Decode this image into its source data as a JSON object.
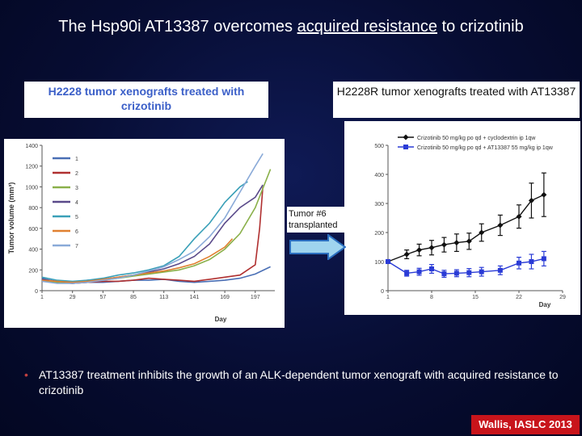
{
  "slide": {
    "title_part1": "The Hsp90i AT13387 overcomes ",
    "title_underlined": "acquired resistance",
    "title_part2": " to crizotinib",
    "left_panel_label": "H2228 tumor xenografts treated with crizotinib",
    "right_panel_label": "H2228R tumor xenografts treated with AT13387",
    "transplant_label": "Tumor #6 transplanted",
    "bullet_text": "AT13387 treatment inhibits the growth of an ALK-dependent tumor xenograft with acquired resistance to crizotinib",
    "credit": "Wallis, IASLC 2013"
  },
  "colors": {
    "background": "#070d33",
    "label_blue": "#3b5fc8",
    "credit_red": "#c8141b",
    "arrow_fill": "#9fd4ee",
    "arrow_stroke": "#2b6fc0"
  },
  "chart_data": [
    {
      "type": "line",
      "xlabel": "Day",
      "ylabel": "Tumor volume (mm³)",
      "xlim": [
        1,
        215
      ],
      "ylim": [
        0,
        1400
      ],
      "xticks": [
        1,
        29,
        57,
        85,
        113,
        141,
        169,
        197
      ],
      "yticks": [
        0,
        200,
        400,
        600,
        800,
        1000,
        1200,
        1400
      ],
      "legend": "left",
      "series": [
        {
          "name": "1",
          "color": "#4a6fb5",
          "x": [
            1,
            15,
            29,
            43,
            57,
            71,
            85,
            99,
            113,
            127,
            141,
            155,
            169,
            183,
            197,
            211
          ],
          "y": [
            120,
            80,
            70,
            80,
            80,
            90,
            100,
            100,
            110,
            90,
            80,
            90,
            100,
            120,
            160,
            230
          ]
        },
        {
          "name": "2",
          "color": "#b03030",
          "x": [
            1,
            15,
            29,
            43,
            57,
            71,
            85,
            99,
            113,
            127,
            141,
            155,
            169,
            183,
            197,
            201,
            204
          ],
          "y": [
            90,
            80,
            70,
            80,
            90,
            90,
            100,
            120,
            110,
            100,
            90,
            110,
            130,
            150,
            250,
            600,
            1000
          ]
        },
        {
          "name": "3",
          "color": "#8ab04a",
          "x": [
            1,
            15,
            29,
            43,
            57,
            71,
            85,
            99,
            113,
            127,
            141,
            155,
            169,
            183,
            197,
            211
          ],
          "y": [
            100,
            80,
            80,
            90,
            100,
            120,
            140,
            160,
            180,
            200,
            240,
            300,
            400,
            550,
            800,
            1170
          ]
        },
        {
          "name": "4",
          "color": "#5a4a8a",
          "x": [
            1,
            15,
            29,
            43,
            57,
            71,
            85,
            99,
            113,
            127,
            141,
            155,
            169,
            183,
            197,
            204
          ],
          "y": [
            110,
            90,
            80,
            100,
            110,
            130,
            150,
            180,
            210,
            260,
            330,
            450,
            650,
            800,
            900,
            1020
          ]
        },
        {
          "name": "5",
          "color": "#3aa0b8",
          "x": [
            1,
            15,
            29,
            43,
            57,
            71,
            85,
            99,
            113,
            127,
            141,
            155,
            169,
            183,
            190
          ],
          "y": [
            130,
            100,
            90,
            100,
            120,
            150,
            170,
            200,
            240,
            330,
            500,
            650,
            850,
            1000,
            1050
          ]
        },
        {
          "name": "6",
          "color": "#e08030",
          "x": [
            1,
            15,
            29,
            43,
            57,
            71,
            85,
            99,
            113,
            127,
            141,
            155,
            169,
            176
          ],
          "y": [
            100,
            90,
            80,
            90,
            110,
            130,
            150,
            170,
            190,
            220,
            260,
            330,
            420,
            500
          ]
        },
        {
          "name": "7",
          "color": "#8aaad8",
          "x": [
            1,
            15,
            29,
            43,
            57,
            71,
            85,
            99,
            113,
            127,
            141,
            155,
            169,
            183,
            197,
            204
          ],
          "y": [
            90,
            70,
            70,
            80,
            100,
            120,
            150,
            190,
            230,
            300,
            380,
            520,
            700,
            950,
            1200,
            1320
          ]
        }
      ]
    },
    {
      "type": "line",
      "xlabel": "Day",
      "ylabel": "",
      "xlim": [
        1,
        29
      ],
      "ylim": [
        0,
        500
      ],
      "xticks": [
        1,
        8,
        15,
        22,
        29
      ],
      "yticks": [
        0,
        100,
        200,
        300,
        400,
        500
      ],
      "legend": "top",
      "series": [
        {
          "name": "Crizotinib 50 mg/kg po qd + cyclodextrin ip 1qw",
          "color": "#111111",
          "marker": "diamond",
          "x": [
            1,
            4,
            6,
            8,
            10,
            12,
            14,
            16,
            19,
            22,
            24,
            26
          ],
          "y": [
            100,
            125,
            140,
            148,
            158,
            165,
            170,
            200,
            225,
            255,
            310,
            330
          ],
          "err": [
            5,
            15,
            20,
            25,
            25,
            30,
            28,
            30,
            35,
            40,
            60,
            75
          ]
        },
        {
          "name": "Crizotinib 50 mg/kg po qd + AT13387 55 mg/kg ip 1qw",
          "color": "#2a3bd6",
          "marker": "square",
          "x": [
            1,
            4,
            6,
            8,
            10,
            12,
            14,
            16,
            19,
            22,
            24,
            26
          ],
          "y": [
            100,
            60,
            65,
            75,
            58,
            60,
            62,
            65,
            70,
            95,
            100,
            110
          ],
          "err": [
            5,
            10,
            12,
            15,
            12,
            12,
            14,
            15,
            15,
            20,
            25,
            25
          ]
        }
      ]
    }
  ]
}
